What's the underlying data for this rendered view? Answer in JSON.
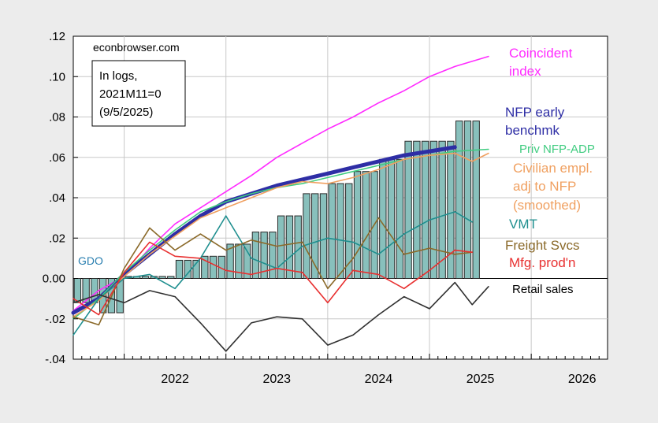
{
  "chart_data": {
    "type": "line",
    "source_label": "econbrowser.com",
    "note_lines": [
      "In logs,",
      "2021M11=0",
      "(9/5/2025)"
    ],
    "ylim": [
      -0.04,
      0.12
    ],
    "yticks": [
      -0.04,
      -0.02,
      0.0,
      0.02,
      0.04,
      0.06,
      0.08,
      0.1,
      0.12
    ],
    "ytick_labels": [
      "-.04",
      "-.02",
      "0.00",
      ".02",
      ".04",
      ".06",
      ".08",
      ".10",
      ".12"
    ],
    "xlim": [
      2021.5,
      2026.75
    ],
    "xtick_labels": [
      "2022",
      "2023",
      "2024",
      "2025",
      "2026"
    ],
    "xtick_label_positions": [
      2022.0,
      2023.0,
      2024.0,
      2025.0,
      2026.0
    ],
    "grid": true,
    "series": [
      {
        "name": "GDO",
        "kind": "bar",
        "color": "#88c0bc",
        "x_start": [
          2021.5,
          2021.75,
          2022.0,
          2022.25,
          2022.5,
          2022.75,
          2023.0,
          2023.25,
          2023.5,
          2023.75,
          2024.0,
          2024.25,
          2024.5,
          2024.75,
          2025.0,
          2025.25
        ],
        "values": [
          -0.012,
          -0.017,
          0.001,
          0.001,
          0.009,
          0.011,
          0.017,
          0.023,
          0.031,
          0.042,
          0.047,
          0.053,
          0.059,
          0.068,
          0.068,
          0.078
        ]
      },
      {
        "name": "Coincident index",
        "color": "#ff2bff",
        "x": [
          2021.5,
          2021.75,
          2022.0,
          2022.25,
          2022.5,
          2022.75,
          2023.0,
          2023.25,
          2023.5,
          2023.75,
          2024.0,
          2024.25,
          2024.5,
          2024.75,
          2025.0,
          2025.25,
          2025.58
        ],
        "values": [
          -0.016,
          -0.006,
          0.001,
          0.015,
          0.027,
          0.035,
          0.043,
          0.051,
          0.06,
          0.067,
          0.074,
          0.08,
          0.087,
          0.093,
          0.1,
          0.105,
          0.11
        ]
      },
      {
        "name": "NFP early benchmk",
        "color": "#2e2ea5",
        "width": 5,
        "x": [
          2021.5,
          2021.75,
          2022.0,
          2022.25,
          2022.5,
          2022.75,
          2023.0,
          2023.25,
          2023.5,
          2023.75,
          2024.0,
          2024.25,
          2024.5,
          2024.75,
          2025.0,
          2025.25
        ],
        "values": [
          -0.017,
          -0.01,
          0.002,
          0.012,
          0.022,
          0.031,
          0.038,
          0.042,
          0.046,
          0.049,
          0.052,
          0.055,
          0.058,
          0.061,
          0.063,
          0.065
        ]
      },
      {
        "name": "Priv NFP-ADP",
        "color": "#40cc80",
        "x": [
          2021.5,
          2021.75,
          2022.0,
          2022.25,
          2022.5,
          2022.75,
          2023.0,
          2023.25,
          2023.5,
          2023.75,
          2024.0,
          2024.25,
          2024.5,
          2024.75,
          2025.0,
          2025.25,
          2025.58
        ],
        "values": [
          -0.02,
          -0.01,
          0.003,
          0.014,
          0.024,
          0.033,
          0.038,
          0.042,
          0.045,
          0.047,
          0.05,
          0.053,
          0.056,
          0.059,
          0.061,
          0.063,
          0.064
        ]
      },
      {
        "name": "Civilian empl. adj to NFP (smoothed)",
        "color": "#f0a060",
        "x": [
          2021.5,
          2021.75,
          2022.0,
          2022.25,
          2022.5,
          2022.75,
          2023.0,
          2023.25,
          2023.5,
          2023.75,
          2024.0,
          2024.25,
          2024.5,
          2024.75,
          2025.0,
          2025.25,
          2025.42,
          2025.58
        ],
        "values": [
          -0.019,
          -0.011,
          0.001,
          0.012,
          0.021,
          0.03,
          0.035,
          0.04,
          0.045,
          0.048,
          0.047,
          0.05,
          0.054,
          0.059,
          0.061,
          0.062,
          0.058,
          0.062
        ]
      },
      {
        "name": "VMT",
        "color": "#1f8f8f",
        "x": [
          2021.5,
          2021.75,
          2022.0,
          2022.25,
          2022.5,
          2022.75,
          2023.0,
          2023.25,
          2023.5,
          2023.75,
          2024.0,
          2024.25,
          2024.5,
          2024.75,
          2025.0,
          2025.25,
          2025.42
        ],
        "values": [
          -0.028,
          -0.01,
          0.0,
          0.002,
          -0.005,
          0.01,
          0.031,
          0.01,
          0.005,
          0.016,
          0.02,
          0.018,
          0.012,
          0.022,
          0.029,
          0.033,
          0.028
        ]
      },
      {
        "name": "Freight Svcs",
        "color": "#8b6a2a",
        "x": [
          2021.5,
          2021.75,
          2022.0,
          2022.25,
          2022.5,
          2022.75,
          2023.0,
          2023.25,
          2023.5,
          2023.75,
          2024.0,
          2024.25,
          2024.5,
          2024.75,
          2025.0,
          2025.25,
          2025.42
        ],
        "values": [
          -0.019,
          -0.023,
          0.005,
          0.025,
          0.014,
          0.022,
          0.014,
          0.019,
          0.016,
          0.018,
          -0.005,
          0.01,
          0.03,
          0.012,
          0.015,
          0.012,
          0.013
        ]
      },
      {
        "name": "Mfg. prod'n",
        "color": "#e83030",
        "x": [
          2021.5,
          2021.75,
          2022.0,
          2022.25,
          2022.5,
          2022.75,
          2023.0,
          2023.25,
          2023.5,
          2023.75,
          2024.0,
          2024.25,
          2024.5,
          2024.75,
          2025.0,
          2025.25,
          2025.42
        ],
        "values": [
          -0.01,
          -0.018,
          0.003,
          0.018,
          0.011,
          0.01,
          0.004,
          0.002,
          0.005,
          0.003,
          -0.012,
          0.004,
          0.002,
          -0.005,
          0.004,
          0.014,
          0.013
        ]
      },
      {
        "name": "Retail sales",
        "color": "#303030",
        "x": [
          2021.5,
          2021.75,
          2022.0,
          2022.25,
          2022.5,
          2022.75,
          2023.0,
          2023.25,
          2023.5,
          2023.75,
          2024.0,
          2024.25,
          2024.5,
          2024.75,
          2025.0,
          2025.25,
          2025.42,
          2025.58
        ],
        "values": [
          -0.012,
          -0.008,
          -0.012,
          -0.006,
          -0.009,
          -0.022,
          -0.036,
          -0.022,
          -0.019,
          -0.02,
          -0.033,
          -0.028,
          -0.018,
          -0.009,
          -0.015,
          -0.002,
          -0.013,
          -0.004
        ]
      }
    ],
    "legend_labels": [
      {
        "text": "Coincident",
        "color": "#ff2bff"
      },
      {
        "text": "index",
        "color": "#ff2bff"
      },
      {
        "text": "NFP early",
        "color": "#2e2ea5"
      },
      {
        "text": "benchmk",
        "color": "#2e2ea5"
      },
      {
        "text": "Priv NFP-ADP",
        "color": "#40cc80"
      },
      {
        "text": "Civilian empl.",
        "color": "#f0a060"
      },
      {
        "text": "adj to NFP",
        "color": "#f0a060"
      },
      {
        "text": "(smoothed)",
        "color": "#f0a060"
      },
      {
        "text": "VMT",
        "color": "#1f8f8f"
      },
      {
        "text": "Freight Svcs",
        "color": "#8b6a2a"
      },
      {
        "text": "Mfg. prod'n",
        "color": "#e83030"
      },
      {
        "text": "Retail sales",
        "color": "#000000"
      },
      {
        "text": "GDO",
        "color": "#2a7fb0"
      }
    ]
  }
}
